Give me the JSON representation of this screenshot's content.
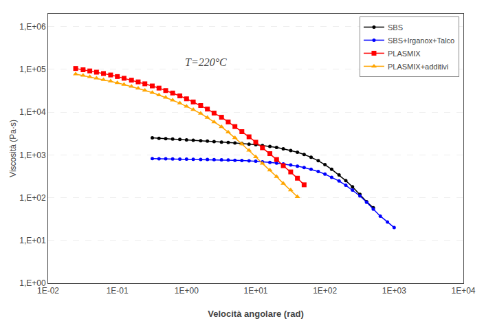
{
  "chart_data": {
    "type": "line",
    "title": "T=220°C",
    "xlabel": "Velocità angolare (rad)",
    "ylabel": "Viscosità (Pa·s)",
    "log": true,
    "grid": "y",
    "legend": "upper right",
    "series": [
      {
        "name": "SBS",
        "color": "#000000",
        "marker": "circle",
        "x": [
          0.32,
          0.4,
          0.5,
          0.63,
          0.8,
          1.0,
          1.25,
          1.6,
          2.0,
          2.5,
          3.2,
          4.0,
          5.0,
          6.3,
          8.0,
          10.0,
          12.5,
          16.0,
          20.0,
          25.0,
          32.0,
          40.0,
          50.0,
          63.0,
          80.0,
          100.0,
          125.0,
          160.0,
          200.0,
          250.0,
          320.0,
          400.0,
          500.0
        ],
        "values": [
          2500,
          2450,
          2400,
          2350,
          2300,
          2250,
          2200,
          2150,
          2100,
          2050,
          2000,
          1950,
          1900,
          1850,
          1790,
          1730,
          1660,
          1580,
          1490,
          1390,
          1270,
          1150,
          1020,
          880,
          730,
          590,
          460,
          340,
          250,
          180,
          120,
          80,
          58
        ]
      },
      {
        "name": "SBS+Irganox+Talco",
        "color": "#0000ff",
        "marker": "circle",
        "x": [
          0.32,
          0.4,
          0.5,
          0.63,
          0.8,
          1.0,
          1.25,
          1.6,
          2.0,
          2.5,
          3.2,
          4.0,
          5.0,
          6.3,
          8.0,
          10.0,
          12.5,
          16.0,
          20.0,
          25.0,
          32.0,
          40.0,
          50.0,
          63.0,
          80.0,
          100.0,
          125.0,
          160.0,
          200.0,
          250.0,
          320.0,
          400.0,
          500.0,
          630.0,
          800.0,
          1000.0
        ],
        "values": [
          820,
          815,
          810,
          805,
          800,
          795,
          790,
          785,
          780,
          775,
          770,
          760,
          750,
          740,
          725,
          710,
          690,
          670,
          645,
          615,
          580,
          545,
          505,
          460,
          410,
          355,
          300,
          245,
          195,
          150,
          110,
          78,
          54,
          37,
          27,
          20
        ]
      },
      {
        "name": "PLASMIX",
        "color": "#ff0000",
        "marker": "square",
        "x": [
          0.025,
          0.032,
          0.04,
          0.05,
          0.063,
          0.08,
          0.1,
          0.125,
          0.16,
          0.2,
          0.25,
          0.32,
          0.4,
          0.5,
          0.63,
          0.8,
          1.0,
          1.25,
          1.6,
          2.0,
          2.5,
          3.2,
          4.0,
          5.0,
          6.3,
          8.0,
          10.0,
          12.5,
          16.0,
          20.0,
          25.0,
          32.0,
          40.0,
          50.0
        ],
        "values": [
          105000,
          98000,
          92000,
          86000,
          80000,
          74000,
          68000,
          62000,
          56000,
          51000,
          46000,
          41000,
          36500,
          32000,
          28000,
          24000,
          20500,
          17300,
          14300,
          11800,
          9500,
          7600,
          5900,
          4600,
          3500,
          2650,
          1980,
          1470,
          1070,
          780,
          560,
          400,
          285,
          200
        ]
      },
      {
        "name": "PLASMIX+additivi",
        "color": "#ffa500",
        "marker": "triangle-up",
        "x": [
          0.025,
          0.032,
          0.04,
          0.05,
          0.063,
          0.08,
          0.1,
          0.125,
          0.16,
          0.2,
          0.25,
          0.32,
          0.4,
          0.5,
          0.63,
          0.8,
          1.0,
          1.25,
          1.6,
          2.0,
          2.5,
          3.2,
          4.0,
          5.0,
          6.3,
          8.0,
          10.0,
          12.5,
          16.0,
          20.0,
          25.0,
          32.0,
          40.0
        ],
        "values": [
          78000,
          72000,
          67000,
          62000,
          57500,
          53000,
          48500,
          44200,
          39800,
          36000,
          32200,
          28600,
          25200,
          22000,
          19000,
          16200,
          13700,
          11400,
          9300,
          7500,
          5900,
          4550,
          3400,
          2500,
          1800,
          1280,
          900,
          630,
          440,
          310,
          215,
          150,
          105
        ]
      }
    ],
    "xlim": [
      0.01,
      10000
    ],
    "ylim": [
      1,
      2000000
    ],
    "xticks": [
      {
        "value": 0.01,
        "label": "1E-02"
      },
      {
        "value": 0.1,
        "label": "1E-01"
      },
      {
        "value": 1,
        "label": "1E+00"
      },
      {
        "value": 10,
        "label": "1E+01"
      },
      {
        "value": 100,
        "label": "1E+02"
      },
      {
        "value": 1000,
        "label": "1E+03"
      },
      {
        "value": 10000,
        "label": "1E+04"
      }
    ],
    "yticks": [
      {
        "value": 1,
        "label": "1,E+00"
      },
      {
        "value": 10,
        "label": "1,E+01"
      },
      {
        "value": 100,
        "label": "1,E+02"
      },
      {
        "value": 1000,
        "label": "1,E+03"
      },
      {
        "value": 10000,
        "label": "1,E+04"
      },
      {
        "value": 100000,
        "label": "1,E+05"
      },
      {
        "value": 1000000,
        "label": "1,E+06"
      }
    ]
  }
}
